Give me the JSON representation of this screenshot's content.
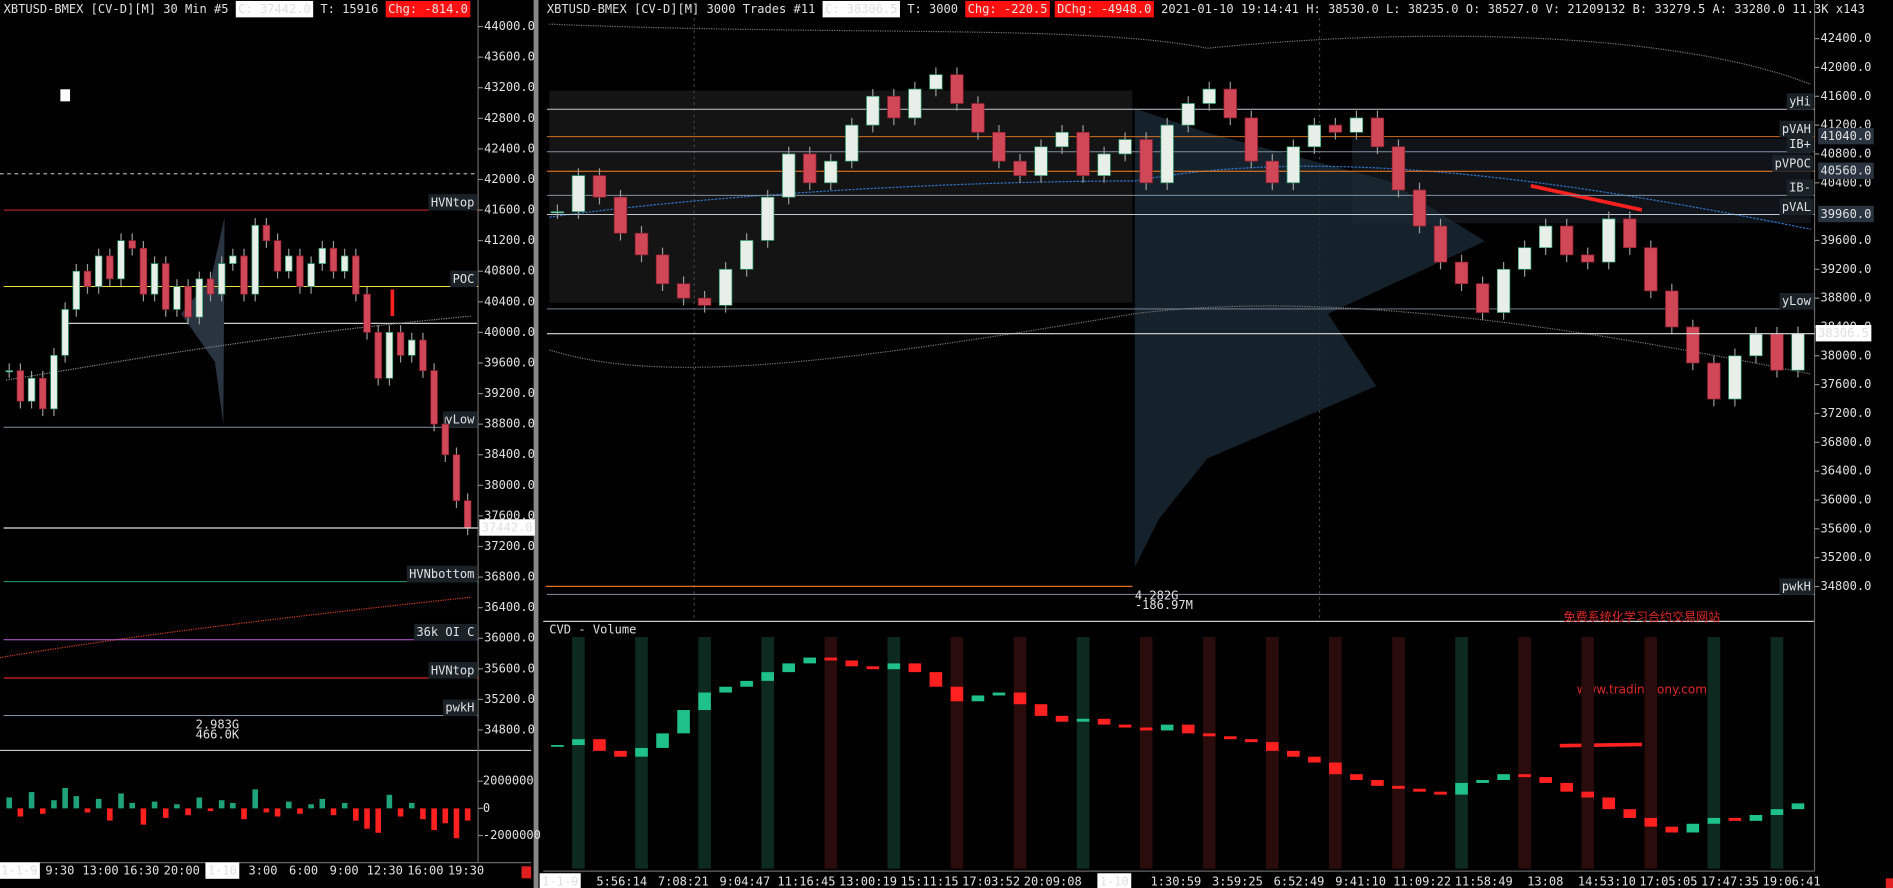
{
  "left_panel": {
    "header": {
      "title": "XBTUSD-BMEX [CV-D][M]   30 Min    #5",
      "close": "C: 37442.0",
      "trades": "T: 15916",
      "change": "Chg: -814.0"
    },
    "yticks": [
      {
        "value": 44000,
        "label": "44000.0"
      },
      {
        "value": 43600,
        "label": "43600.0"
      },
      {
        "value": 43200,
        "label": "43200.0"
      },
      {
        "value": 42800,
        "label": "42800.0"
      },
      {
        "value": 42400,
        "label": "42400.0"
      },
      {
        "value": 42000,
        "label": "42000.0"
      },
      {
        "value": 41600,
        "label": "41600.0"
      },
      {
        "value": 41200,
        "label": "41200.0"
      },
      {
        "value": 40800,
        "label": "40800.0"
      },
      {
        "value": 40400,
        "label": "40400.0"
      },
      {
        "value": 40000,
        "label": "40000.0"
      },
      {
        "value": 39600,
        "label": "39600.0"
      },
      {
        "value": 39200,
        "label": "39200.0"
      },
      {
        "value": 38800,
        "label": "38800.0"
      },
      {
        "value": 38400,
        "label": "38400.0"
      },
      {
        "value": 38000,
        "label": "38000.0"
      },
      {
        "value": 37600,
        "label": "37600.0"
      },
      {
        "value": 37200,
        "label": "37200.0"
      },
      {
        "value": 36800,
        "label": "36800.0"
      },
      {
        "value": 36400,
        "label": "36400.0"
      },
      {
        "value": 36000,
        "label": "36000.0"
      },
      {
        "value": 35600,
        "label": "35600.0"
      },
      {
        "value": 35200,
        "label": "35200.0"
      },
      {
        "value": 34800,
        "label": "34800.0"
      }
    ],
    "price_tag": {
      "value": 37442,
      "label": "37442.0"
    },
    "levels": [
      {
        "label": "HVNtop",
        "value": 41600,
        "color": "#ff3030"
      },
      {
        "label": "POC",
        "value": 40600,
        "color": "#e8e040"
      },
      {
        "label": "yLow",
        "value": 38760,
        "color": "#8090a0"
      },
      {
        "label": "HVNbottom",
        "value": 36740,
        "color": "#20a070"
      },
      {
        "label": "36k OI C",
        "value": 35980,
        "color": "#c060e0"
      },
      {
        "label": "HVNtop",
        "value": 35480,
        "color": "#ff3030"
      },
      {
        "label": "pwkH",
        "value": 34990,
        "color": "#8090a0"
      }
    ],
    "closes": [
      39500,
      39100,
      39400,
      39000,
      39700,
      40300,
      40800,
      40600,
      41000,
      40700,
      41200,
      41100,
      40500,
      40900,
      40300,
      40600,
      40200,
      40700,
      40500,
      40900,
      41000,
      40500,
      41400,
      41200,
      40800,
      41000,
      40600,
      40900,
      41100,
      40800,
      41000,
      40500,
      40000,
      39400,
      40000,
      39700,
      39900,
      39500,
      38800,
      38400,
      37800,
      37442
    ],
    "delta_ticks": [
      2000000,
      0,
      -2000000
    ],
    "delta": [
      800000,
      -600000,
      1200000,
      -400000,
      600000,
      1500000,
      900000,
      -300000,
      700000,
      -900000,
      1100000,
      400000,
      -1200000,
      500000,
      -700000,
      300000,
      -500000,
      800000,
      -200000,
      600000,
      400000,
      -800000,
      1400000,
      -300000,
      -600000,
      500000,
      -400000,
      300000,
      700000,
      -500000,
      400000,
      -900000,
      -1500000,
      -1800000,
      1000000,
      -600000,
      400000,
      -800000,
      -1600000,
      -1100000,
      -2200000,
      -900000
    ],
    "time_labels": [
      "1-1-9",
      "9:30",
      "13:00",
      "16:30",
      "20:00",
      "1-10",
      "3:00",
      "6:00",
      "9:00",
      "12:30",
      "16:00",
      "19:30"
    ],
    "profile_labels": [
      "2.983G",
      "466.0K"
    ]
  },
  "right_panel": {
    "header": {
      "title": "XBTUSD-BMEX [CV-D][M]  3000 Trades  #11",
      "close": "C: 38306.5",
      "trades": "T: 3000",
      "change": "Chg: -220.5",
      "day_change": "DChg: -4948.0",
      "info": "2021-01-10 19:14:41  H: 38530.0  L: 38235.0  O: 38527.0  V: 21209132  B: 33279.5  A: 33280.0  11.3K x143"
    },
    "yticks": [
      {
        "value": 42400,
        "label": "42400.0"
      },
      {
        "value": 42000,
        "label": "42000.0"
      },
      {
        "value": 41600,
        "label": "41600.0"
      },
      {
        "value": 41200,
        "label": "41200.0"
      },
      {
        "value": 40800,
        "label": "40800.0"
      },
      {
        "value": 40400,
        "label": "40400.0"
      },
      {
        "value": 39600,
        "label": "39600.0"
      },
      {
        "value": 39200,
        "label": "39200.0"
      },
      {
        "value": 38800,
        "label": "38800.0"
      },
      {
        "value": 38400,
        "label": "38400.0"
      },
      {
        "value": 38000,
        "label": "38000.0"
      },
      {
        "value": 37600,
        "label": "37600.0"
      },
      {
        "value": 37200,
        "label": "37200.0"
      },
      {
        "value": 36800,
        "label": "36800.0"
      },
      {
        "value": 36400,
        "label": "36400.0"
      },
      {
        "value": 36000,
        "label": "36000.0"
      },
      {
        "value": 35600,
        "label": "35600.0"
      },
      {
        "value": 35200,
        "label": "35200.0"
      },
      {
        "value": 34800,
        "label": "34800.0"
      }
    ],
    "price_tag": {
      "value": 38306.5,
      "label": "38306.5"
    },
    "levels": [
      {
        "label": "yHi",
        "value": 41420,
        "color": "#c0c8d0"
      },
      {
        "label": "pVAH",
        "value": 41040,
        "color": "#d07020",
        "value_label": "41040.0"
      },
      {
        "label": "IB+",
        "value": 40830,
        "color": "#8090a0"
      },
      {
        "label": "pVPOC",
        "value": 40560,
        "color": "#ff8020",
        "value_label": "40560.0"
      },
      {
        "label": "IB-",
        "value": 40225,
        "color": "#8090a0"
      },
      {
        "label": "pVAL",
        "value": 39960,
        "color": "#c0c8d0",
        "value_label": "39960.0"
      },
      {
        "label": "yLow",
        "value": 38650,
        "color": "#8090a0"
      },
      {
        "label": "pwkH",
        "value": 34690,
        "color": "#8090a0"
      }
    ],
    "closes": [
      40000,
      40500,
      40200,
      39700,
      39400,
      39000,
      38800,
      38700,
      39200,
      39600,
      40200,
      40800,
      40400,
      40700,
      41200,
      41600,
      41300,
      41700,
      41900,
      41500,
      41100,
      40700,
      40500,
      40900,
      41100,
      40500,
      40800,
      41000,
      40400,
      41200,
      41500,
      41700,
      41300,
      40700,
      40400,
      40900,
      41200,
      41100,
      41300,
      40900,
      40300,
      39800,
      39300,
      39000,
      38600,
      39200,
      39500,
      39800,
      39400,
      39300,
      39900,
      39500,
      38900,
      38400,
      37900,
      37400,
      38000,
      38300,
      37800,
      38306.5
    ],
    "profile_labels": [
      "4.282G",
      "-186.97M"
    ],
    "cvd_title": "CVD - Volume",
    "cvd": [
      40,
      42,
      38,
      36,
      39,
      44,
      52,
      58,
      60,
      62,
      65,
      68,
      70,
      69,
      67,
      66,
      68,
      65,
      60,
      55,
      57,
      58,
      54,
      50,
      48,
      49,
      47,
      46,
      45,
      47,
      44,
      43,
      42,
      41,
      38,
      36,
      34,
      30,
      28,
      26,
      25,
      24,
      23,
      27,
      28,
      30,
      29,
      27,
      24,
      22,
      18,
      15,
      12,
      10,
      13,
      15,
      14,
      16,
      18,
      20
    ],
    "time_labels": [
      "1-1-9",
      "5:56:14",
      "7:08:21",
      "9:04:47",
      "11:16:45",
      "13:00:19",
      "15:11:15",
      "17:03:52",
      "20:09:08",
      "1-10",
      "1:30:59",
      "3:59:25",
      "6:52:49",
      "9:41:10",
      "11:09:22",
      "11:58:49",
      "13:08",
      "14:53:10",
      "17:05:05",
      "17:47:35",
      "19:06:41"
    ]
  },
  "watermark": {
    "line1": "免费系统化学习合约交易网站",
    "line2": "www.tradingtony.com"
  }
}
